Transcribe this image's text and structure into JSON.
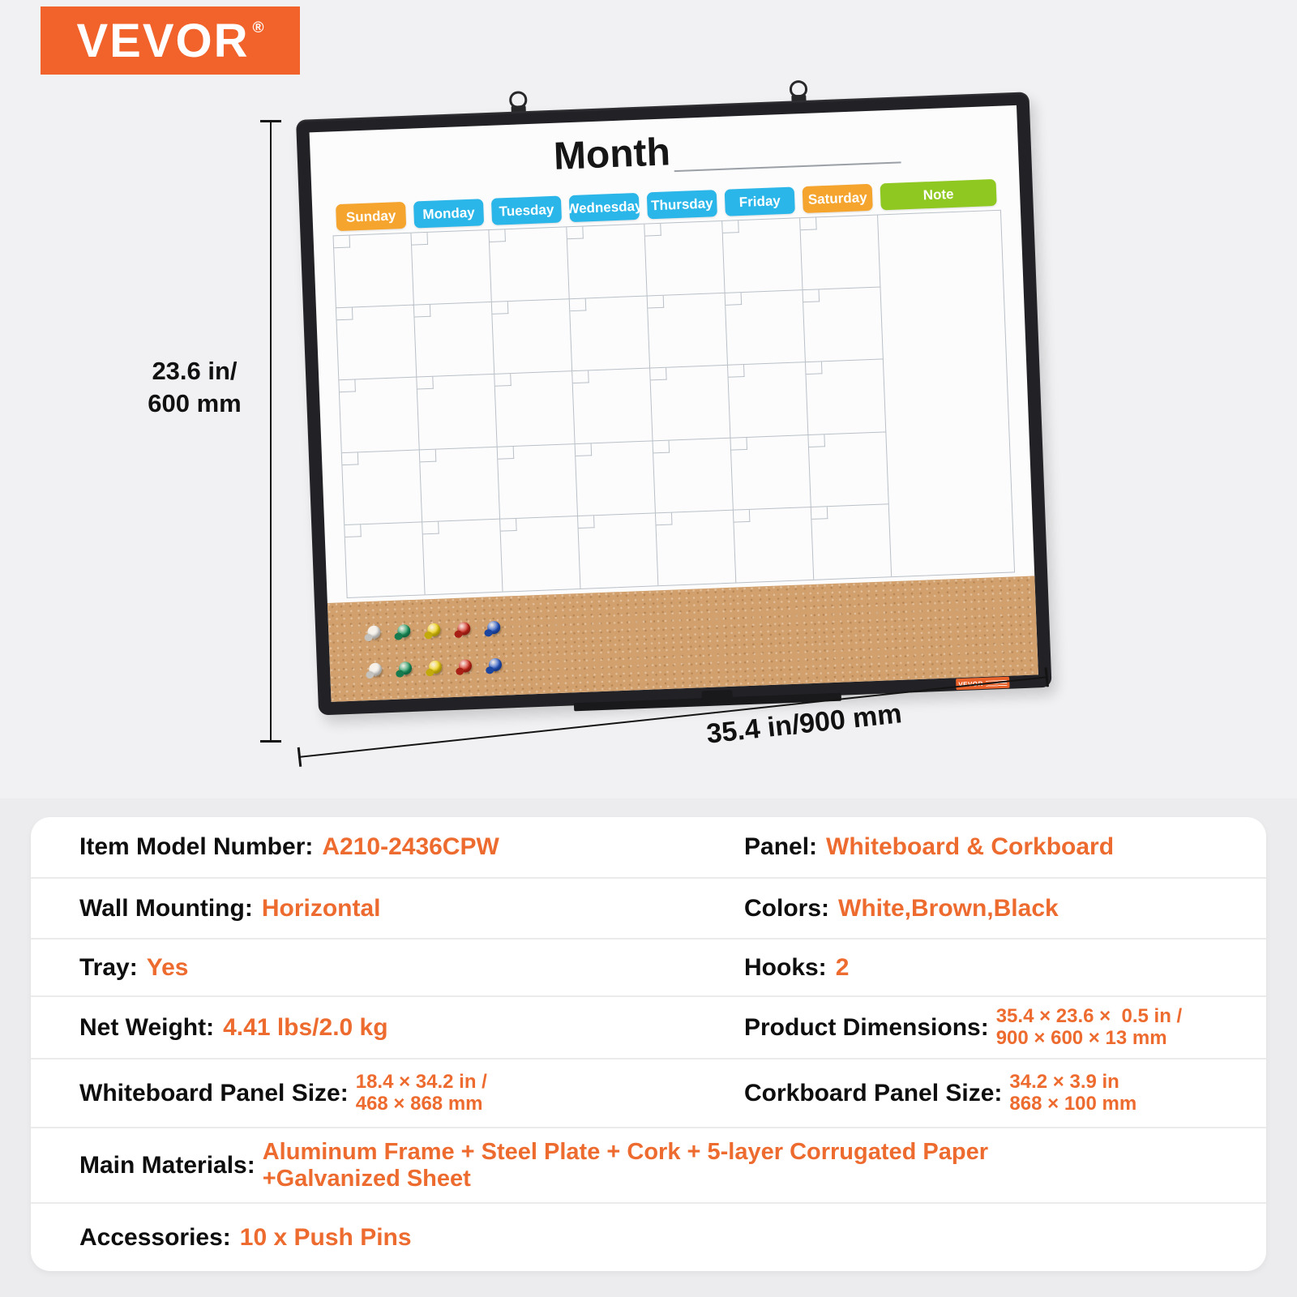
{
  "page": {
    "background": "#F1F1F3",
    "lower_background": "#ECECEE"
  },
  "logo": {
    "text": "VEVOR",
    "registered": "®",
    "background": "#F2632B",
    "color": "#FFFFFF"
  },
  "board": {
    "title": "Month",
    "brand_label": "VEVOR",
    "hooks": 2,
    "frame_color": "#222226",
    "cork_color": "#D2A06C",
    "grid": {
      "day_columns": 7,
      "rows": 5
    },
    "day_headers": [
      {
        "label": "Sunday",
        "color": "#F5A42E"
      },
      {
        "label": "Monday",
        "color": "#2AB6E9"
      },
      {
        "label": "Tuesday",
        "color": "#2AB6E9"
      },
      {
        "label": "Wednesday",
        "color": "#2AB6E9"
      },
      {
        "label": "Thursday",
        "color": "#2AB6E9"
      },
      {
        "label": "Friday",
        "color": "#2AB6E9"
      },
      {
        "label": "Saturday",
        "color": "#F5A42E"
      },
      {
        "label": "Note",
        "color": "#90C822",
        "wide": true
      }
    ],
    "pin_rows": 2,
    "pin_colors": [
      "#F4F2EE",
      "#1B9A62",
      "#F2D40D",
      "#D2271A",
      "#2356C8"
    ]
  },
  "dimensions": {
    "height_line1": "23.6 in/",
    "height_line2": "600 mm",
    "width_label": "35.4 in/900 mm"
  },
  "specs": {
    "accent": "#ED6B2F",
    "rows": [
      {
        "cells": [
          {
            "label": "Item Model Number:",
            "value": "A210-2436CPW"
          },
          {
            "label": "Panel:",
            "value": "Whiteboard & Corkboard"
          }
        ]
      },
      {
        "cells": [
          {
            "label": "Wall Mounting:",
            "value": "Horizontal"
          },
          {
            "label": "Colors:",
            "value": "White,Brown,Black"
          }
        ]
      },
      {
        "cells": [
          {
            "label": "Tray:",
            "value": "Yes"
          },
          {
            "label": "Hooks:",
            "value": "2"
          }
        ]
      },
      {
        "cells": [
          {
            "label": "Net Weight:",
            "value": "4.41 lbs/2.0 kg"
          },
          {
            "label": "Product Dimensions:",
            "value_lines": [
              "35.4 × 23.6 ×  0.5 in /",
              "900 × 600 × 13 mm"
            ]
          }
        ]
      },
      {
        "cells": [
          {
            "label": "Whiteboard Panel Size:",
            "value_lines": [
              "18.4 × 34.2 in /",
              "468 × 868 mm"
            ]
          },
          {
            "label": "Corkboard Panel Size:",
            "value_lines": [
              "34.2 × 3.9 in",
              "868 × 100 mm"
            ]
          }
        ]
      },
      {
        "cells": [
          {
            "label": "Main Materials:",
            "value_lines": [
              "Aluminum Frame + Steel Plate + Cork + 5-layer Corrugated Paper",
              "+Galvanized Sheet"
            ]
          }
        ]
      },
      {
        "cells": [
          {
            "label": "Accessories:",
            "value": "10 x Push Pins"
          }
        ]
      }
    ]
  }
}
